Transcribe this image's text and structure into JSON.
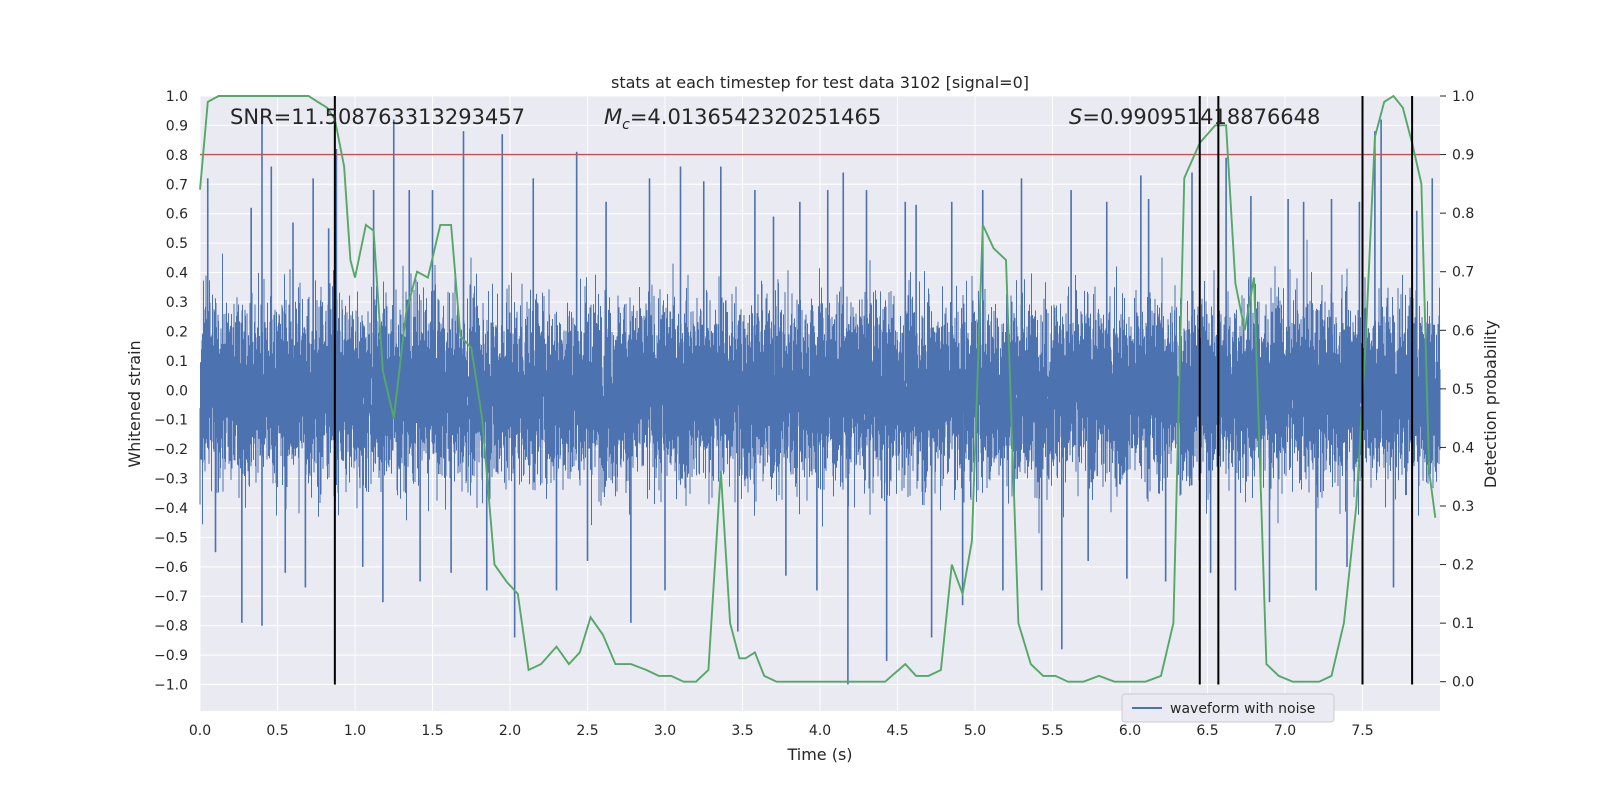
{
  "chart_data": {
    "type": "line",
    "title": "stats at each timestep for test data 3102 [signal=0]",
    "xlabel": "Time (s)",
    "ylabel": "Whitened strain",
    "ylabel_right": "Detection probability",
    "xlim": [
      0.0,
      8.0
    ],
    "ylim": [
      -1.09,
      1.0
    ],
    "ylim_right": [
      -0.05,
      1.0
    ],
    "x_ticks": [
      "0.0",
      "0.5",
      "1.0",
      "1.5",
      "2.0",
      "2.5",
      "3.0",
      "3.5",
      "4.0",
      "4.5",
      "5.0",
      "5.5",
      "6.0",
      "6.5",
      "7.0",
      "7.5"
    ],
    "y_ticks": [
      "1.0",
      "0.9",
      "0.8",
      "0.7",
      "0.6",
      "0.5",
      "0.4",
      "0.3",
      "0.2",
      "0.1",
      "0.0",
      "−0.1",
      "−0.2",
      "−0.3",
      "−0.4",
      "−0.5",
      "−0.6",
      "−0.7",
      "−0.8",
      "−0.9",
      "−1.0"
    ],
    "y_ticks_right": [
      "1.0",
      "0.9",
      "0.8",
      "0.7",
      "0.6",
      "0.5",
      "0.4",
      "0.3",
      "0.2",
      "0.1",
      "0.0"
    ],
    "annotations": {
      "snr": "SNR=11.508763313293457",
      "mc_symbol": "M",
      "mc_sub": "c",
      "mc_value": "=4.0136542320251465",
      "s_symbol": "S",
      "s_value": "=0.990951418876648"
    },
    "legend": {
      "label": "waveform with noise",
      "placement": "lower-right"
    },
    "colors": {
      "waveform": "#4c72b0",
      "probability": "#55a868",
      "threshold": "#c44e52",
      "markers": "#000000",
      "background": "#eaeaf2",
      "grid": "#ffffff"
    },
    "threshold_probability": 0.9,
    "vertical_markers_x": [
      0.87,
      6.45,
      6.57,
      7.5,
      7.82
    ],
    "series": [
      {
        "name": "waveform with noise",
        "envelope_note": "whitened strain noise, bulk within about ±0.45, spikes to ±0.9",
        "spikes": [
          [
            0.05,
            0.72
          ],
          [
            0.1,
            -0.55
          ],
          [
            0.27,
            -0.79
          ],
          [
            0.33,
            0.62
          ],
          [
            0.4,
            0.92
          ],
          [
            0.4,
            -0.8
          ],
          [
            0.46,
            0.76
          ],
          [
            0.55,
            -0.62
          ],
          [
            0.6,
            0.57
          ],
          [
            0.68,
            -0.67
          ],
          [
            0.73,
            0.72
          ],
          [
            0.83,
            0.55
          ],
          [
            0.88,
            0.82
          ],
          [
            1.05,
            -0.6
          ],
          [
            1.12,
            0.68
          ],
          [
            1.18,
            -0.72
          ],
          [
            1.25,
            0.92
          ],
          [
            1.35,
            0.68
          ],
          [
            1.42,
            -0.65
          ],
          [
            1.5,
            0.68
          ],
          [
            1.62,
            -0.62
          ],
          [
            1.7,
            0.88
          ],
          [
            1.85,
            -0.68
          ],
          [
            1.95,
            0.87
          ],
          [
            2.03,
            -0.84
          ],
          [
            2.15,
            0.72
          ],
          [
            2.3,
            -0.68
          ],
          [
            2.43,
            0.81
          ],
          [
            2.5,
            -0.58
          ],
          [
            2.62,
            0.64
          ],
          [
            2.78,
            -0.79
          ],
          [
            2.9,
            0.72
          ],
          [
            3.0,
            -0.68
          ],
          [
            3.1,
            0.76
          ],
          [
            3.25,
            0.71
          ],
          [
            3.36,
            0.76
          ],
          [
            3.47,
            -0.82
          ],
          [
            3.58,
            0.68
          ],
          [
            3.7,
            0.59
          ],
          [
            3.78,
            -0.63
          ],
          [
            3.87,
            0.64
          ],
          [
            3.98,
            -0.68
          ],
          [
            4.05,
            0.68
          ],
          [
            4.15,
            0.74
          ],
          [
            4.18,
            -1.0
          ],
          [
            4.3,
            0.68
          ],
          [
            4.43,
            -0.92
          ],
          [
            4.55,
            0.64
          ],
          [
            4.62,
            0.63
          ],
          [
            4.72,
            -0.84
          ],
          [
            4.85,
            0.64
          ],
          [
            4.92,
            -0.73
          ],
          [
            5.05,
            0.68
          ],
          [
            5.18,
            -0.68
          ],
          [
            5.3,
            0.72
          ],
          [
            5.43,
            -0.68
          ],
          [
            5.56,
            -0.88
          ],
          [
            5.62,
            0.68
          ],
          [
            5.73,
            -0.58
          ],
          [
            5.85,
            0.64
          ],
          [
            5.98,
            -0.64
          ],
          [
            6.07,
            0.73
          ],
          [
            6.12,
            0.65
          ],
          [
            6.23,
            -0.65
          ],
          [
            6.4,
            0.74
          ],
          [
            6.52,
            -0.62
          ],
          [
            6.62,
            0.79
          ],
          [
            6.68,
            -0.68
          ],
          [
            6.78,
            0.66
          ],
          [
            6.9,
            -0.72
          ],
          [
            7.02,
            0.65
          ],
          [
            7.12,
            0.64
          ],
          [
            7.2,
            -0.68
          ],
          [
            7.3,
            0.65
          ],
          [
            7.4,
            -0.6
          ],
          [
            7.48,
            0.64
          ],
          [
            7.58,
            0.88
          ],
          [
            7.62,
            0.92
          ],
          [
            7.7,
            -0.67
          ],
          [
            7.82,
            -0.58
          ],
          [
            7.85,
            0.61
          ],
          [
            7.95,
            0.72
          ]
        ]
      },
      {
        "name": "detection probability",
        "x": [
          0.0,
          0.05,
          0.12,
          0.2,
          0.3,
          0.4,
          0.5,
          0.6,
          0.7,
          0.76,
          0.82,
          0.87,
          0.93,
          0.97,
          1.0,
          1.07,
          1.12,
          1.18,
          1.25,
          1.33,
          1.4,
          1.47,
          1.55,
          1.62,
          1.68,
          1.75,
          1.82,
          1.9,
          1.98,
          2.05,
          2.12,
          2.2,
          2.3,
          2.38,
          2.45,
          2.52,
          2.6,
          2.68,
          2.78,
          2.88,
          2.96,
          3.04,
          3.12,
          3.2,
          3.28,
          3.36,
          3.42,
          3.48,
          3.52,
          3.58,
          3.64,
          3.72,
          3.8,
          4.0,
          4.2,
          4.42,
          4.55,
          4.62,
          4.7,
          4.78,
          4.85,
          4.92,
          4.98,
          5.05,
          5.12,
          5.2,
          5.28,
          5.36,
          5.44,
          5.52,
          5.6,
          5.7,
          5.8,
          5.9,
          6.0,
          6.1,
          6.2,
          6.28,
          6.35,
          6.45,
          6.55,
          6.62,
          6.68,
          6.74,
          6.8,
          6.88,
          6.96,
          7.05,
          7.15,
          7.22,
          7.3,
          7.38,
          7.46,
          7.52,
          7.58,
          7.64,
          7.7,
          7.76,
          7.82,
          7.88,
          7.93,
          7.97
        ],
        "y": [
          0.84,
          0.99,
          1.0,
          1.0,
          1.0,
          1.0,
          1.0,
          1.0,
          1.0,
          0.99,
          0.98,
          0.96,
          0.88,
          0.72,
          0.69,
          0.78,
          0.77,
          0.53,
          0.45,
          0.63,
          0.7,
          0.69,
          0.78,
          0.78,
          0.59,
          0.57,
          0.45,
          0.2,
          0.17,
          0.15,
          0.02,
          0.03,
          0.06,
          0.03,
          0.05,
          0.11,
          0.08,
          0.03,
          0.03,
          0.02,
          0.01,
          0.01,
          0.0,
          0.0,
          0.02,
          0.36,
          0.1,
          0.04,
          0.04,
          0.05,
          0.01,
          0.0,
          0.0,
          0.0,
          0.0,
          0.0,
          0.03,
          0.01,
          0.01,
          0.02,
          0.2,
          0.15,
          0.24,
          0.78,
          0.74,
          0.72,
          0.1,
          0.03,
          0.01,
          0.01,
          0.0,
          0.0,
          0.01,
          0.0,
          0.0,
          0.0,
          0.01,
          0.1,
          0.86,
          0.92,
          0.95,
          0.95,
          0.68,
          0.6,
          0.69,
          0.03,
          0.01,
          0.0,
          0.0,
          0.0,
          0.01,
          0.1,
          0.3,
          0.58,
          0.93,
          0.99,
          1.0,
          0.98,
          0.92,
          0.85,
          0.36,
          0.28
        ]
      }
    ]
  }
}
